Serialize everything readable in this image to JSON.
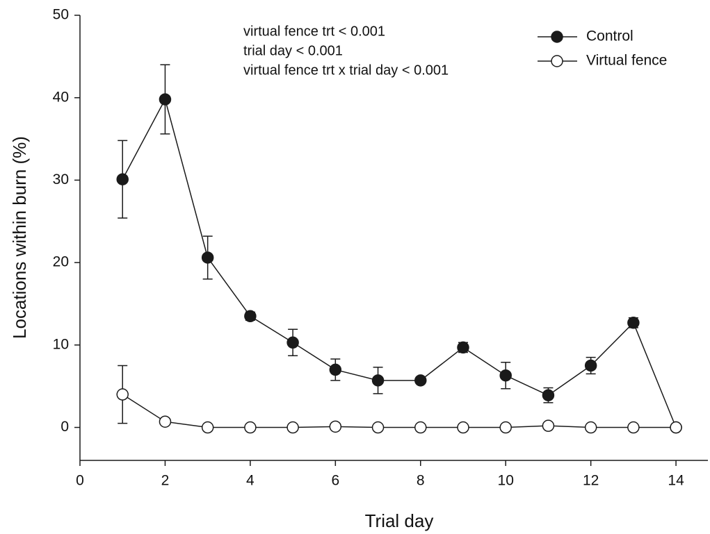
{
  "chart_data": {
    "type": "line",
    "x_label": "Trial day",
    "y_label": "Locations within burn (%)",
    "annotations": [
      "virtual fence trt < 0.001",
      "trial day < 0.001",
      "virtual fence trt x trial day < 0.001"
    ],
    "x": [
      1,
      2,
      3,
      4,
      5,
      6,
      7,
      8,
      9,
      10,
      11,
      12,
      13,
      14
    ],
    "series": [
      {
        "name": "Control",
        "color": "#1a1a1a",
        "marker_fill": "#1a1a1a",
        "values": [
          30.1,
          39.8,
          20.6,
          13.5,
          10.3,
          7.0,
          5.7,
          5.7,
          9.7,
          6.3,
          3.9,
          7.5,
          12.7,
          0
        ],
        "errors": [
          4.7,
          4.2,
          2.6,
          0.5,
          1.6,
          1.3,
          1.6,
          0.3,
          0.6,
          1.6,
          0.9,
          1.0,
          0.6,
          0
        ]
      },
      {
        "name": "Virtual fence",
        "color": "#1a1a1a",
        "marker_fill": "#ffffff",
        "values": [
          4.0,
          0.7,
          0,
          0,
          0,
          0.1,
          0,
          0,
          0,
          0,
          0.2,
          0,
          0,
          0
        ],
        "errors": [
          3.5,
          0,
          0,
          0,
          0,
          0,
          0,
          0,
          0,
          0,
          0,
          0,
          0,
          0
        ]
      }
    ],
    "xlim": [
      0,
      14.75
    ],
    "ylim": [
      -4,
      50
    ],
    "xticks": [
      0,
      2,
      4,
      6,
      8,
      10,
      12,
      14
    ],
    "yticks": [
      0,
      10,
      20,
      30,
      40,
      50
    ],
    "legend": "upper right",
    "grid": false
  }
}
